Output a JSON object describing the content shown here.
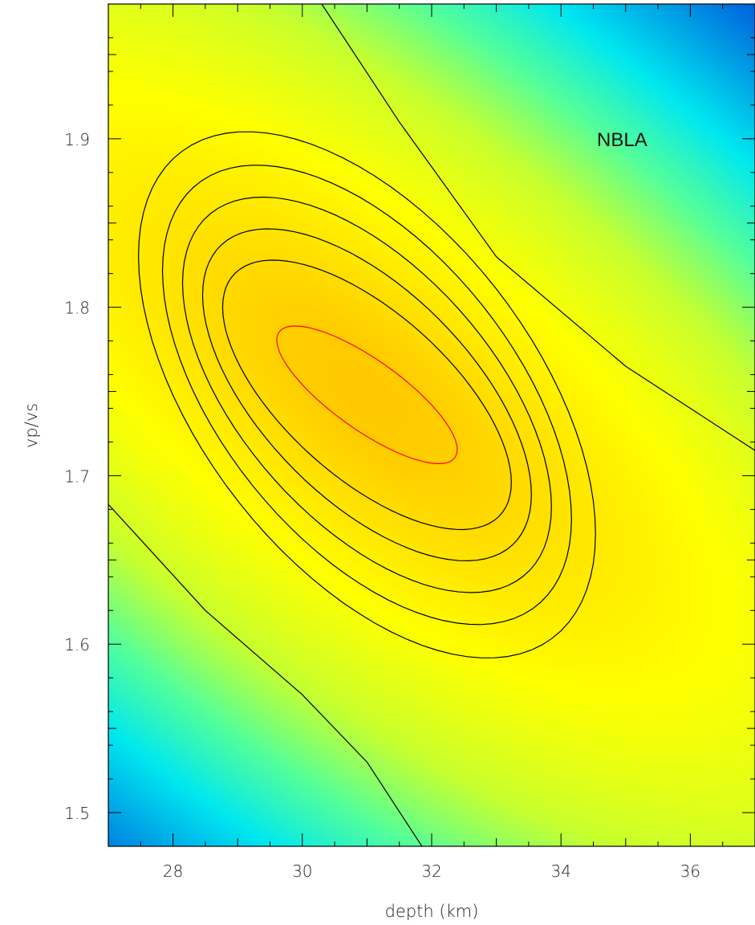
{
  "chart_data": {
    "type": "heatmap",
    "xlabel": "depth (km)",
    "ylabel": "vp/vs",
    "xlim": [
      27,
      37
    ],
    "ylim": [
      1.48,
      1.98
    ],
    "x_ticks": [
      28,
      30,
      32,
      34,
      36
    ],
    "x_tick_labels": [
      "28",
      "30",
      "32",
      "34",
      "36"
    ],
    "y_ticks": [
      1.5,
      1.6,
      1.7,
      1.8,
      1.9
    ],
    "y_tick_labels": [
      "1.5",
      "1.6",
      "1.7",
      "1.8",
      "1.9"
    ],
    "annotation": "NBLA",
    "colormap": [
      "#0066dd",
      "#00e8f0",
      "#55ff99",
      "#c8ff2e",
      "#ffff00",
      "#ffc800"
    ],
    "contour_color": "#000000",
    "best_contour_color": "#ff0000",
    "best_fit": {
      "depth": 31.0,
      "vpvs": 1.748
    },
    "grid": false,
    "legend": "none"
  }
}
